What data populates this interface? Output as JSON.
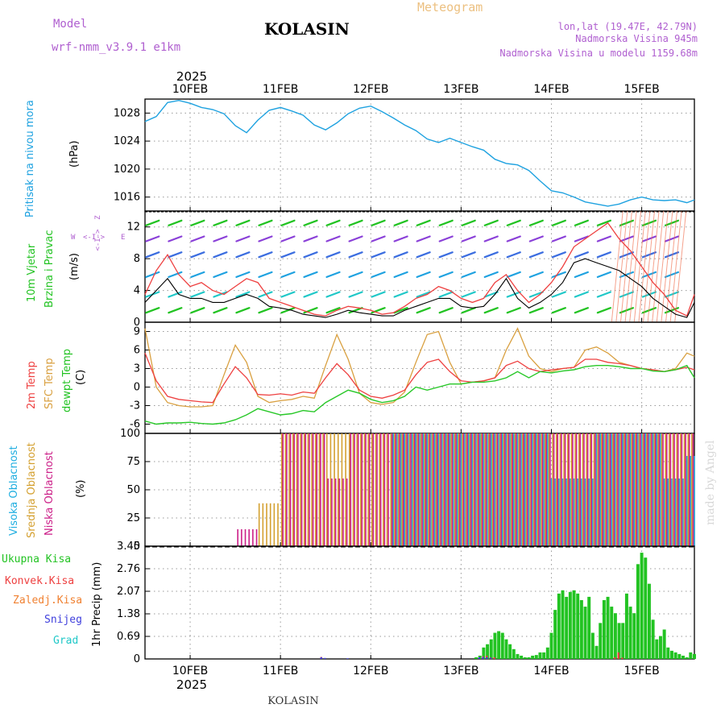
{
  "header": {
    "model_label": "Model",
    "model_name": "wrf-nmm_v3.9.1  e1km",
    "station": "KOLASIN",
    "product": "Meteogram",
    "coords": "lon,lat (19.47E, 42.79N)",
    "elevation": "Nadmorska Visina 945m",
    "model_elevation": "Nadmorska Visina u modelu 1159.68m",
    "footer_station": "KOLASIN",
    "credit": "made by Angel"
  },
  "colors": {
    "pressure": "#1fa2e0",
    "temp2m": "#ee4040",
    "sfc_temp": "#d9a040",
    "dewpt": "#28c828",
    "high_cloud": "#1faee0",
    "mid_cloud": "#d4a030",
    "low_cloud": "#cc1f88",
    "precip_total": "#22c322",
    "precip_conv": "#ee4040",
    "precip_frozen": "#f08030",
    "snow": "#4040dd",
    "hail": "#20c8c8",
    "wind_label": "#22c322",
    "wind_label2": "#22c322",
    "compass": "#b060d0"
  },
  "axis_x": {
    "year_top": "2025",
    "year_bottom": "2025",
    "days": [
      "10FEB",
      "11FEB",
      "12FEB",
      "13FEB",
      "14FEB",
      "15FEB"
    ]
  },
  "panel_labels": {
    "pressure": [
      "Pritisak na nivou mora",
      "(hPa)"
    ],
    "wind": [
      "10m Vjetar",
      "Brzina i Pravac",
      "(m/s)"
    ],
    "compass": {
      "n": "N",
      "s": "S",
      "e": "E",
      "w": "W",
      "cardinal": "Z",
      "arrow": "<-I->"
    },
    "temp": [
      "2m Temp",
      "SFC Temp",
      "dewpt Temp",
      "(C)"
    ],
    "cloud": [
      "Visoka Oblacnost",
      "Srednja Oblacnost",
      "Niska Oblacnost",
      "(%)"
    ],
    "precip_legend": [
      "Ukupna Kisa",
      "Konvek.Kisa",
      "Zaledj.Kisa",
      "Snijeg",
      "Grad"
    ],
    "precip_axis": "1hr Precip (mm)"
  },
  "chart_data": [
    {
      "type": "line",
      "title": "Pritisak na nivou mora",
      "ylabel": "(hPa)",
      "ylim": [
        1014,
        1030
      ],
      "yticks": [
        1016,
        1020,
        1024,
        1028
      ],
      "x_unit": "hours from 10FEB 00UTC",
      "series": [
        {
          "x": [
            -12,
            -9,
            -6,
            -3,
            0,
            3,
            6,
            9,
            12,
            15,
            18,
            21,
            24,
            27,
            30,
            33,
            36,
            39,
            42,
            45,
            48,
            51,
            54,
            57,
            60,
            63,
            66,
            69,
            72,
            75,
            78,
            81,
            84,
            87,
            90,
            93,
            96,
            99,
            102,
            105,
            108,
            111,
            114,
            117,
            120,
            123,
            126,
            129,
            132,
            134
          ],
          "y": [
            1026.8,
            1027.5,
            1029.5,
            1029.8,
            1029.4,
            1028.8,
            1028.5,
            1027.9,
            1026.2,
            1025.2,
            1027.0,
            1028.4,
            1028.8,
            1028.3,
            1027.7,
            1026.3,
            1025.6,
            1026.6,
            1027.9,
            1028.7,
            1029.0,
            1028.2,
            1027.3,
            1026.3,
            1025.5,
            1024.3,
            1023.8,
            1024.4,
            1023.8,
            1023.2,
            1022.7,
            1021.4,
            1020.8,
            1020.6,
            1019.8,
            1018.3,
            1016.9,
            1016.6,
            1016.0,
            1015.3,
            1015.0,
            1014.7,
            1015.0,
            1015.6,
            1016.0,
            1015.6,
            1015.5,
            1015.6,
            1015.2,
            1015.6
          ]
        }
      ]
    },
    {
      "type": "line",
      "title": "10m Vjetar Brzina i Pravac",
      "ylabel": "(m/s)",
      "ylim": [
        0,
        14
      ],
      "yticks": [
        0,
        4,
        8,
        12
      ],
      "x_unit": "hours from 10FEB 00UTC",
      "series": [
        {
          "name": "gust",
          "x": [
            -12,
            -9,
            -6,
            -3,
            0,
            3,
            6,
            9,
            12,
            15,
            18,
            21,
            24,
            27,
            30,
            33,
            36,
            39,
            42,
            45,
            48,
            51,
            54,
            57,
            60,
            63,
            66,
            69,
            72,
            75,
            78,
            81,
            84,
            87,
            90,
            93,
            96,
            99,
            102,
            105,
            108,
            111,
            114,
            117,
            120,
            123,
            126,
            129,
            132,
            134
          ],
          "y": [
            3.5,
            6.5,
            8.5,
            6.0,
            4.5,
            5.0,
            4.0,
            3.5,
            4.5,
            5.5,
            5.0,
            3.0,
            2.5,
            2.0,
            1.5,
            1.0,
            0.8,
            1.5,
            2.0,
            1.8,
            1.5,
            1.0,
            1.2,
            2.0,
            3.0,
            3.5,
            4.5,
            4.0,
            3.0,
            2.5,
            3.0,
            5.0,
            6.0,
            4.0,
            2.5,
            3.5,
            5.0,
            7.0,
            9.5,
            10.5,
            11.5,
            12.5,
            10.5,
            9.0,
            7.0,
            5.0,
            3.5,
            1.5,
            0.8,
            3.5
          ]
        },
        {
          "name": "speed",
          "x": [
            -12,
            -9,
            -6,
            -3,
            0,
            3,
            6,
            9,
            12,
            15,
            18,
            21,
            24,
            27,
            30,
            33,
            36,
            39,
            42,
            45,
            48,
            51,
            54,
            57,
            60,
            63,
            66,
            69,
            72,
            75,
            78,
            81,
            84,
            87,
            90,
            93,
            96,
            99,
            102,
            105,
            108,
            111,
            114,
            117,
            120,
            123,
            126,
            129,
            132,
            134
          ],
          "y": [
            2.5,
            4.0,
            5.5,
            3.5,
            3.0,
            3.0,
            2.5,
            2.5,
            3.0,
            3.5,
            3.0,
            2.0,
            1.8,
            1.5,
            1.0,
            0.8,
            0.6,
            1.0,
            1.5,
            1.2,
            1.0,
            0.8,
            0.8,
            1.5,
            2.0,
            2.5,
            3.0,
            3.0,
            2.0,
            1.8,
            2.0,
            3.5,
            5.5,
            3.0,
            1.8,
            2.5,
            3.5,
            5.0,
            7.5,
            8.0,
            7.5,
            7.0,
            6.5,
            5.5,
            4.5,
            3.0,
            2.0,
            1.0,
            0.6,
            2.5
          ]
        }
      ]
    },
    {
      "type": "line",
      "title": "2m Temp / SFC Temp / dewpt Temp",
      "ylabel": "(C)",
      "ylim": [
        -7.5,
        10.5
      ],
      "yticks": [
        -6,
        -3,
        0,
        3,
        6,
        9
      ],
      "x_unit": "hours from 10FEB 00UTC",
      "series": [
        {
          "name": "2m Temp",
          "x": [
            -12,
            -9,
            -6,
            -3,
            0,
            3,
            6,
            9,
            12,
            15,
            18,
            21,
            24,
            27,
            30,
            33,
            36,
            39,
            42,
            45,
            48,
            51,
            54,
            57,
            60,
            63,
            66,
            69,
            72,
            75,
            78,
            81,
            84,
            87,
            90,
            93,
            96,
            99,
            102,
            105,
            108,
            111,
            114,
            117,
            120,
            123,
            126,
            129,
            132,
            134
          ],
          "y": [
            5.5,
            1.0,
            -1.5,
            -2.0,
            -2.2,
            -2.4,
            -2.5,
            0.5,
            3.3,
            1.5,
            -1.2,
            -1.3,
            -1.1,
            -1.3,
            -0.8,
            -1.0,
            1.5,
            3.8,
            2.0,
            -0.5,
            -1.5,
            -1.8,
            -1.3,
            -0.5,
            2.0,
            4.0,
            4.5,
            2.5,
            1.0,
            0.8,
            1.0,
            1.5,
            3.5,
            4.2,
            3.0,
            2.5,
            2.8,
            3.0,
            3.2,
            4.5,
            4.5,
            4.0,
            3.8,
            3.5,
            3.0,
            2.8,
            2.5,
            2.8,
            3.2,
            2.8
          ]
        },
        {
          "name": "SFC Temp",
          "x": [
            -12,
            -9,
            -6,
            -3,
            0,
            3,
            6,
            9,
            12,
            15,
            18,
            21,
            24,
            27,
            30,
            33,
            36,
            39,
            42,
            45,
            48,
            51,
            54,
            57,
            60,
            63,
            66,
            69,
            72,
            75,
            78,
            81,
            84,
            87,
            90,
            93,
            96,
            99,
            102,
            105,
            108,
            111,
            114,
            117,
            120,
            123,
            126,
            129,
            132,
            134
          ],
          "y": [
            9.5,
            0.0,
            -2.5,
            -3.0,
            -3.2,
            -3.2,
            -3.0,
            2.0,
            6.8,
            4.0,
            -1.5,
            -2.5,
            -2.2,
            -2.0,
            -1.5,
            -1.8,
            3.5,
            8.5,
            4.5,
            -1.0,
            -2.5,
            -2.8,
            -2.5,
            -0.8,
            4.0,
            8.5,
            9.0,
            4.0,
            0.5,
            0.8,
            1.0,
            1.5,
            6.0,
            9.5,
            5.0,
            3.0,
            2.5,
            3.0,
            3.2,
            6.0,
            6.5,
            5.5,
            4.0,
            3.5,
            3.0,
            2.8,
            2.5,
            3.0,
            5.5,
            5.0
          ]
        },
        {
          "name": "dewpt Temp",
          "x": [
            -12,
            -9,
            -6,
            -3,
            0,
            3,
            6,
            9,
            12,
            15,
            18,
            21,
            24,
            27,
            30,
            33,
            36,
            39,
            42,
            45,
            48,
            51,
            54,
            57,
            60,
            63,
            66,
            69,
            72,
            75,
            78,
            81,
            84,
            87,
            90,
            93,
            96,
            99,
            102,
            105,
            108,
            111,
            114,
            117,
            120,
            123,
            126,
            129,
            132,
            134
          ],
          "y": [
            -5.5,
            -6.0,
            -5.8,
            -5.8,
            -5.7,
            -5.9,
            -6.0,
            -5.8,
            -5.3,
            -4.5,
            -3.5,
            -4.0,
            -4.5,
            -4.3,
            -3.8,
            -4.0,
            -2.5,
            -1.5,
            -0.5,
            -1.0,
            -2.0,
            -2.5,
            -2.2,
            -1.5,
            0.0,
            -0.5,
            0.0,
            0.5,
            0.5,
            0.8,
            0.8,
            1.0,
            1.5,
            2.5,
            1.5,
            2.5,
            2.3,
            2.6,
            2.8,
            3.3,
            3.5,
            3.5,
            3.3,
            3.0,
            3.0,
            2.6,
            2.5,
            2.8,
            3.5,
            1.5
          ]
        }
      ]
    },
    {
      "type": "bar",
      "title": "Visoka / Srednja / Niska Oblacnost",
      "ylabel": "(%)",
      "ylim": [
        0,
        100
      ],
      "yticks": [
        0,
        25,
        50,
        75,
        100
      ],
      "x_unit": "hours from 10FEB 00UTC",
      "series": [
        {
          "name": "Visoka Oblacnost",
          "x": [
            -12,
            -6,
            0,
            6,
            12,
            18,
            24,
            30,
            36,
            42,
            48,
            54,
            60,
            66,
            72,
            78,
            84,
            90,
            96,
            102,
            108,
            114,
            120,
            126,
            132
          ],
          "y": [
            0,
            0,
            0,
            0,
            0,
            0,
            0,
            0,
            0,
            0,
            0,
            100,
            100,
            100,
            100,
            100,
            100,
            100,
            60,
            60,
            100,
            100,
            100,
            60,
            80
          ]
        },
        {
          "name": "Srednja Oblacnost",
          "x": [
            -12,
            -6,
            0,
            6,
            12,
            18,
            24,
            30,
            36,
            42,
            48,
            54,
            60,
            66,
            72,
            78,
            84,
            90,
            96,
            102,
            108,
            114,
            120,
            126,
            132
          ],
          "y": [
            0,
            0,
            0,
            0,
            0,
            38,
            100,
            100,
            100,
            100,
            100,
            100,
            100,
            100,
            100,
            100,
            100,
            100,
            100,
            100,
            100,
            100,
            100,
            100,
            100
          ]
        },
        {
          "name": "Niska Oblacnost",
          "x": [
            -12,
            -6,
            0,
            6,
            12,
            18,
            24,
            30,
            36,
            42,
            48,
            54,
            60,
            66,
            72,
            78,
            84,
            90,
            96,
            102,
            108,
            114,
            120,
            126,
            132
          ],
          "y": [
            0,
            0,
            0,
            0,
            15,
            0,
            100,
            100,
            60,
            100,
            100,
            100,
            100,
            100,
            100,
            100,
            100,
            100,
            100,
            100,
            100,
            100,
            100,
            100,
            100
          ]
        }
      ]
    },
    {
      "type": "bar",
      "title": "1hr Precip",
      "ylabel": "(mm)",
      "ylim": [
        0,
        3.45
      ],
      "yticks": [
        0,
        0.69,
        1.38,
        2.07,
        2.76,
        3.45
      ],
      "x_unit": "hours from 10FEB 00UTC",
      "series": [
        {
          "name": "Ukupna Kisa",
          "x": [
            76,
            77,
            78,
            79,
            80,
            81,
            82,
            83,
            84,
            85,
            86,
            87,
            88,
            89,
            90,
            91,
            92,
            93,
            94,
            95,
            96,
            97,
            98,
            99,
            100,
            101,
            102,
            103,
            104,
            105,
            106,
            107,
            108,
            109,
            110,
            111,
            112,
            113,
            114,
            115,
            116,
            117,
            118,
            119,
            120,
            121,
            122,
            123,
            124,
            125,
            126,
            127,
            128,
            129,
            130,
            131,
            132,
            133,
            134
          ],
          "y": [
            0.05,
            0.1,
            0.35,
            0.45,
            0.6,
            0.8,
            0.85,
            0.8,
            0.6,
            0.45,
            0.3,
            0.15,
            0.1,
            0.05,
            0.05,
            0.1,
            0.12,
            0.2,
            0.2,
            0.35,
            0.8,
            1.5,
            2.0,
            2.1,
            1.9,
            2.05,
            2.1,
            2.0,
            1.8,
            1.6,
            1.9,
            0.8,
            0.4,
            1.1,
            1.8,
            1.9,
            1.6,
            1.4,
            1.1,
            1.1,
            2.0,
            1.6,
            1.4,
            2.9,
            3.25,
            3.1,
            2.3,
            1.2,
            0.6,
            0.7,
            0.9,
            0.35,
            0.25,
            0.2,
            0.15,
            0.1,
            0.05,
            0.2,
            0.15
          ]
        },
        {
          "name": "Konvek.Kisa",
          "x": [
            35,
            77,
            78,
            79,
            80,
            81,
            113,
            114,
            115
          ],
          "y": [
            0.06,
            0.04,
            0.08,
            0.1,
            0.05,
            0.05,
            0.05,
            0.2,
            0.04
          ]
        },
        {
          "name": "Snijeg",
          "x": [
            35,
            36,
            42,
            77,
            78,
            79,
            80
          ],
          "y": [
            0.05,
            0.03,
            0.02,
            0.05,
            0.06,
            0.05,
            0.04
          ]
        }
      ]
    }
  ]
}
